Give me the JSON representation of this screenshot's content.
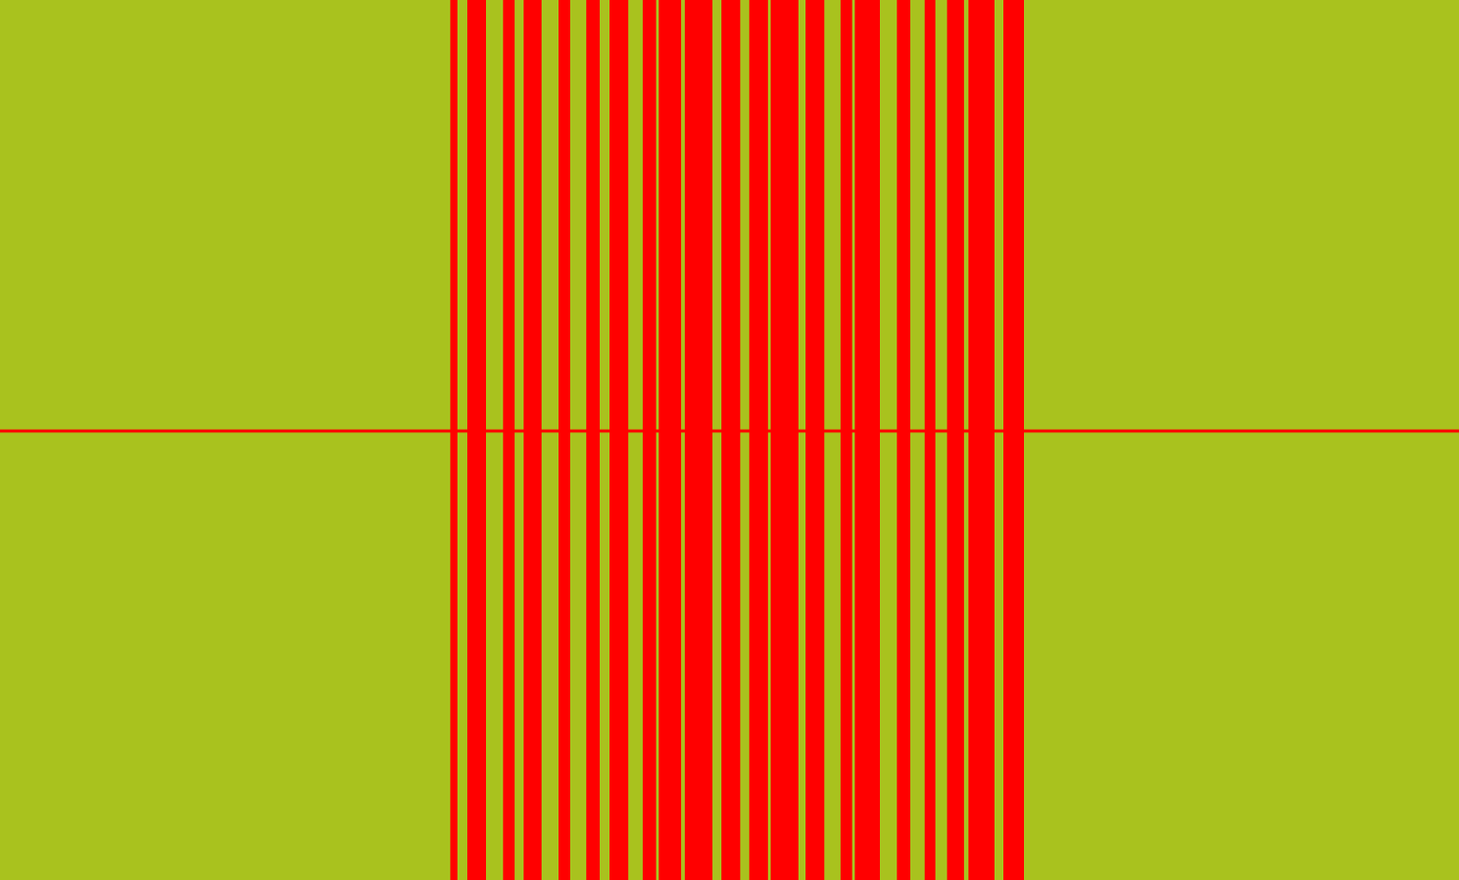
{
  "chart_data": {
    "type": "spectrogram",
    "xlim": [
      0,
      1568
    ],
    "ylim": [
      0,
      945
    ],
    "tick_labels": false,
    "color": "#a9c21e",
    "carrier": {
      "value": 483,
      "color": "#ff0000"
    },
    "bursts": {
      "color": "#ff0000",
      "intervals": [
        [
          484,
          491
        ],
        [
          502,
          522
        ],
        [
          540,
          553
        ],
        [
          562,
          582
        ],
        [
          600,
          612
        ],
        [
          630,
          644
        ],
        [
          655,
          675
        ],
        [
          690,
          705
        ],
        [
          708,
          732
        ],
        [
          735,
          765
        ],
        [
          775,
          795
        ],
        [
          805,
          825
        ],
        [
          828,
          858
        ],
        [
          865,
          885
        ],
        [
          903,
          915
        ],
        [
          918,
          945
        ],
        [
          963,
          978
        ],
        [
          993,
          1005
        ],
        [
          1017,
          1035
        ],
        [
          1040,
          1068
        ],
        [
          1078,
          1100
        ]
      ]
    }
  }
}
